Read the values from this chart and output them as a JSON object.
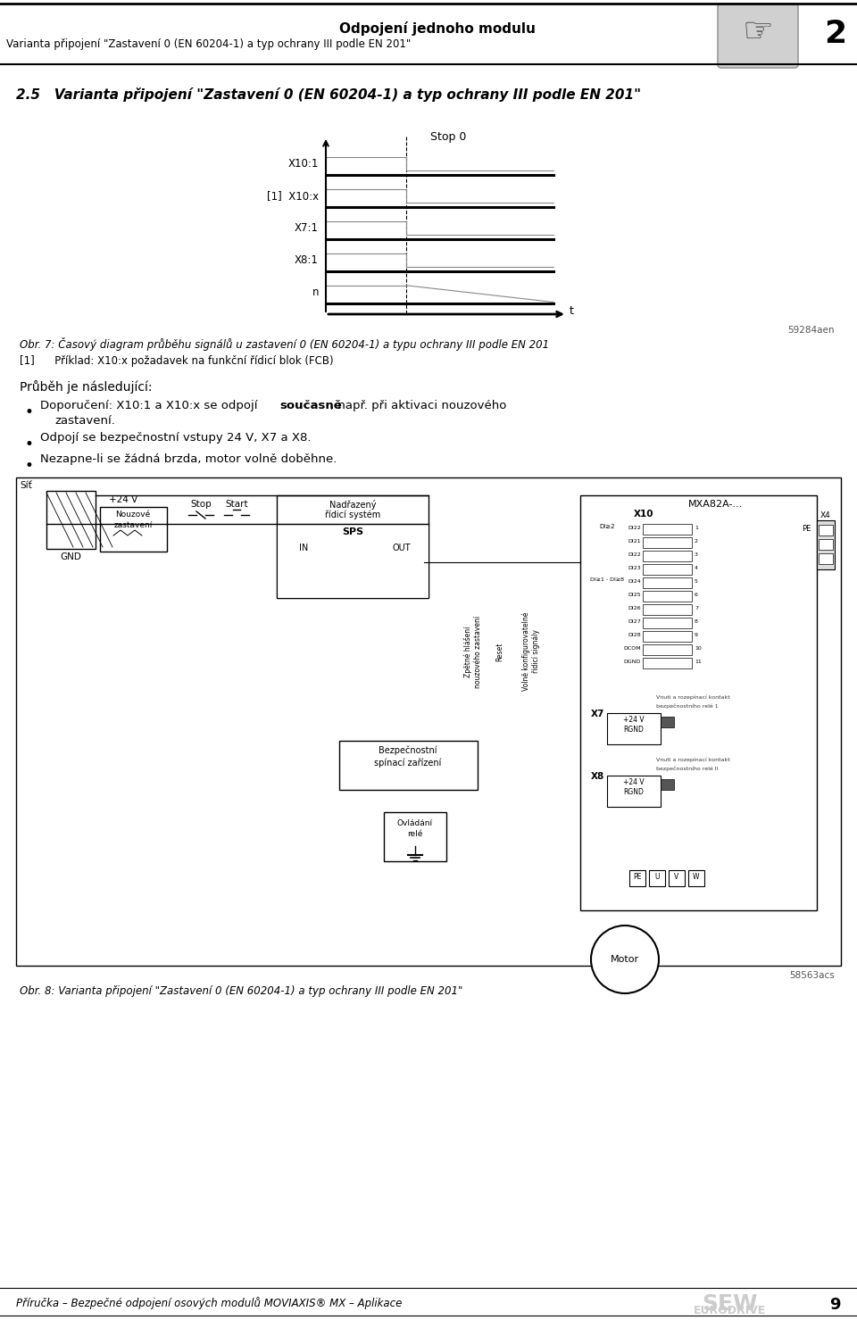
{
  "page_bg": "#ffffff",
  "header_title": "Odpojení jednoho modulu",
  "header_subtitle": "Varianta připojení \"Zastavení 0 (EN 60204-1) a typ ochrany III podle EN 201\"",
  "chapter_number": "2",
  "section_title": "2.5   Varianta připojení \"Zastavení 0 (EN 60204-1) a typ ochrany III podle EN 201\"",
  "timing_diagram_title": "Stop 0",
  "timing_signals": [
    "X10:1",
    "[1]  X10:x",
    "X7:1",
    "X8:1",
    "n"
  ],
  "fig7_caption": "Obr. 7: Časový diagram průběhu signálů u zastavení 0 (EN 60204-1) a typu ochrany III podle EN 201",
  "ref_note": "[1]      Příklad: X10:x požadavek na funkční řídicí blok (FCB)",
  "flow_title": "Průběh je následující:",
  "bullet1a": "Doporučení: X10:1 a X10:x se odpojí ",
  "bullet1b": "současně",
  "bullet1c": ", např. při aktivaci nouzového",
  "bullet1d": "zastavení.",
  "bullet2": "Odpojí se bezpečnostní vstupy 24 V, X7 a X8.",
  "bullet3": "Nezapne-li se žádná brzda, motor volně doběhne.",
  "fig8_caption": "Obr. 8: Varianta připojení \"Zastavení 0 (EN 60204-1) a typ ochrany III podle EN 201\"",
  "footer_text": "Příručka – Bezpečné odpojení osových modulů MOVIAXIS® MX – Aplikace",
  "footer_page": "9",
  "ref_num": "59284aen",
  "ref_num2": "58563acs"
}
